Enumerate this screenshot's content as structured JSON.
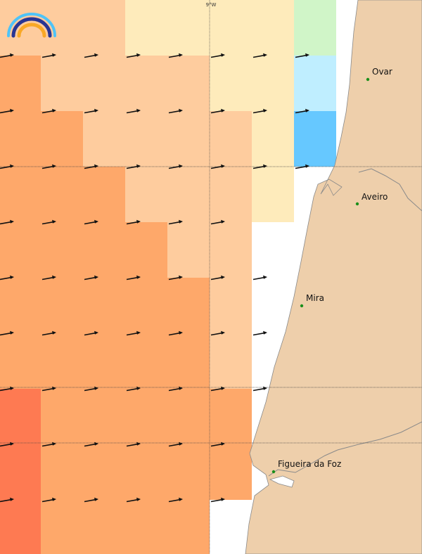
{
  "map": {
    "longitude_label": "9°W",
    "logo": {
      "name": "rainbow-logo",
      "colors": [
        "#4fc3f7",
        "#283593",
        "#f9a825"
      ]
    },
    "colors": {
      "land": "#eecfab",
      "sea": "#ffffff",
      "coast": "#8a8a8a",
      "arrow": "#111111",
      "city_dot": "#1a8f1a",
      "gridline": "#444444"
    },
    "cells": [
      [
        "#fecc9e",
        "#fecc9e",
        "#fecc9e",
        "#feebbb",
        "#feebbb",
        "#feebbb",
        "#feebbb",
        "#d0f5c8",
        null,
        null
      ],
      [
        "#fea86a",
        "#fecc9e",
        "#fecc9e",
        "#fecc9e",
        "#fecc9e",
        "#feebbb",
        "#feebbb",
        "#bfeeff",
        null,
        null
      ],
      [
        "#fea86a",
        "#fea86a",
        "#fecc9e",
        "#fecc9e",
        "#fecc9e",
        "#fecc9e",
        "#feebbb",
        "#66c8ff",
        null,
        null
      ],
      [
        "#fea86a",
        "#fea86a",
        "#fea86a",
        "#fecc9e",
        "#fecc9e",
        "#fecc9e",
        "#feebbb",
        null,
        null,
        null
      ],
      [
        "#fea86a",
        "#fea86a",
        "#fea86a",
        "#fea86a",
        "#fecc9e",
        "#fecc9e",
        null,
        null,
        null,
        null
      ],
      [
        "#fea86a",
        "#fea86a",
        "#fea86a",
        "#fea86a",
        "#fea86a",
        "#fecc9e",
        null,
        null,
        null,
        null
      ],
      [
        "#fea86a",
        "#fea86a",
        "#fea86a",
        "#fea86a",
        "#fea86a",
        "#fecc9e",
        null,
        null,
        null,
        null
      ],
      [
        "#fe7a52",
        "#fea86a",
        "#fea86a",
        "#fea86a",
        "#fea86a",
        "#fea86a",
        null,
        null,
        null,
        null
      ],
      [
        "#fe7a52",
        "#fea86a",
        "#fea86a",
        "#fea86a",
        "#fea86a",
        "#fea86a",
        null,
        null,
        null,
        null
      ],
      [
        "#fe7a52",
        "#fea86a",
        "#fea86a",
        "#fea86a",
        "#fea86a",
        null,
        null,
        null,
        null,
        null
      ]
    ],
    "cities": [
      {
        "id": "ovar",
        "name": "Ovar"
      },
      {
        "id": "aveiro",
        "name": "Aveiro"
      },
      {
        "id": "mira",
        "name": "Mira"
      },
      {
        "id": "figueira",
        "name": "Figueira da Foz"
      }
    ]
  }
}
